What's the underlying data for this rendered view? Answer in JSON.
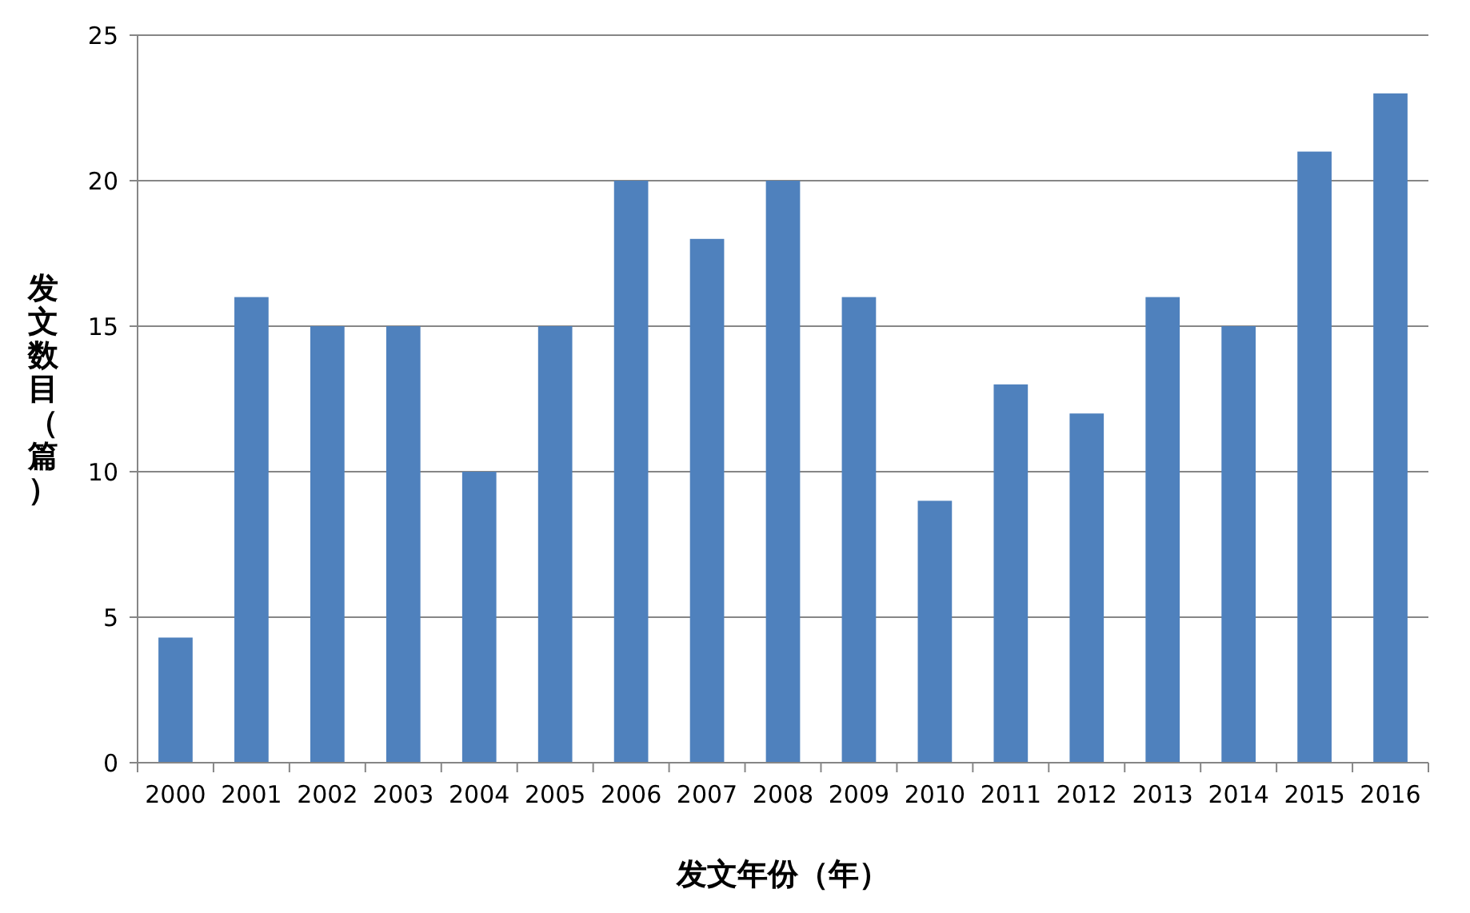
{
  "chart_data": {
    "type": "bar",
    "xlabel": "发文年份（年）",
    "ylabel": "发文数目（篇）",
    "categories": [
      "2000",
      "2001",
      "2002",
      "2003",
      "2004",
      "2005",
      "2006",
      "2007",
      "2008",
      "2009",
      "2010",
      "2011",
      "2012",
      "2013",
      "2014",
      "2015",
      "2016"
    ],
    "values": [
      4.3,
      16,
      15,
      15,
      10,
      15,
      20,
      18,
      20,
      16,
      9,
      13,
      12,
      16,
      15,
      21,
      23
    ],
    "color": "#4f81bd",
    "ylim": [
      0,
      25
    ],
    "yticks": [
      0,
      5,
      10,
      15,
      20,
      25
    ],
    "grid": "y"
  }
}
